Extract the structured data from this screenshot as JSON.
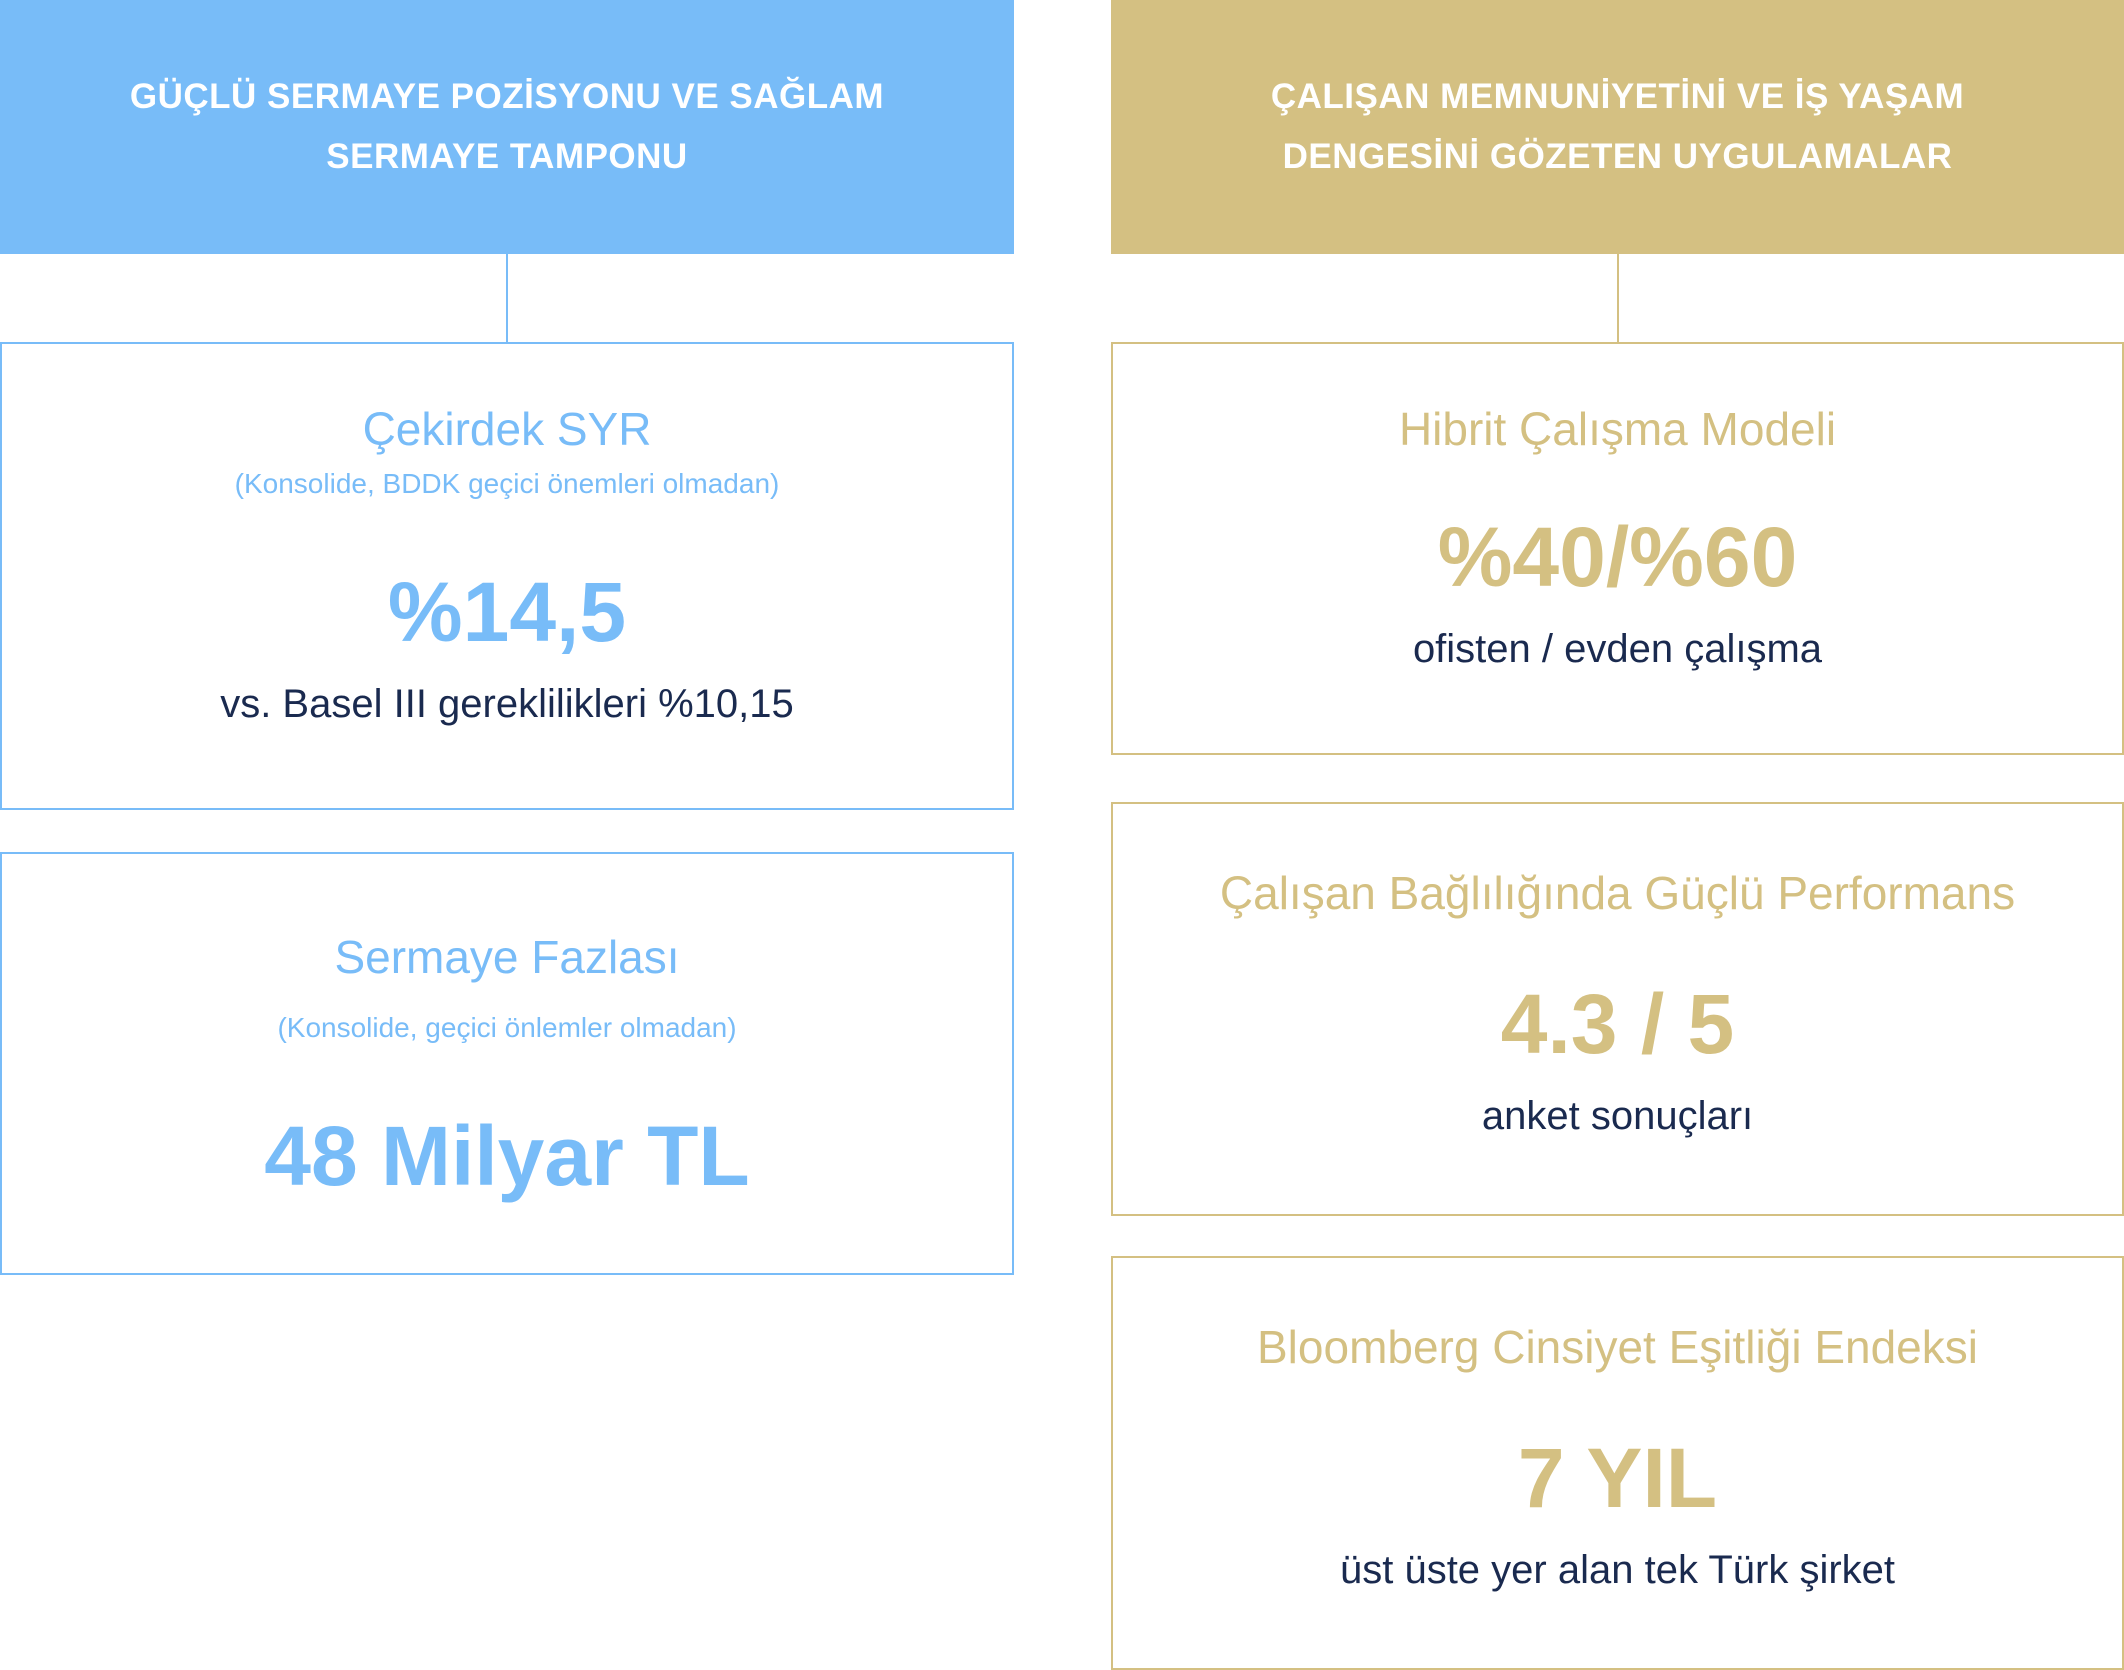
{
  "left": {
    "header": {
      "line1": "GÜÇLÜ SERMAYE POZİSYONU VE SAĞLAM",
      "line2": "SERMAYE TAMPONU"
    },
    "cards": [
      {
        "title": "Çekirdek SYR",
        "note": "(Konsolide, BDDK geçici önemleri olmadan)",
        "value": "%14,5",
        "caption": "vs. Basel III gereklilikleri %10,15"
      },
      {
        "title": "Sermaye Fazlası",
        "note": "(Konsolide, geçici önlemler olmadan)",
        "value": "48 Milyar TL"
      }
    ]
  },
  "right": {
    "header": {
      "line1": "ÇALIŞAN MEMNUNİYETİNİ VE İŞ YAŞAM",
      "line2": "DENGESİNİ GÖZETEN UYGULAMALAR"
    },
    "cards": [
      {
        "title": "Hibrit Çalışma Modeli",
        "value": "%40/%60",
        "caption": "ofisten / evden çalışma"
      },
      {
        "title": "Çalışan Bağlılığında Güçlü Performans",
        "value": "4.3 / 5",
        "caption": "anket sonuçları"
      },
      {
        "title": "Bloomberg Cinsiyet Eşitliği Endeksi",
        "value": "7 YIL",
        "caption": "üst üste yer alan tek Türk şirket"
      }
    ]
  },
  "colors": {
    "blue": "#78bcf8",
    "gold": "#d4c082",
    "navy": "#1a2a4f"
  }
}
